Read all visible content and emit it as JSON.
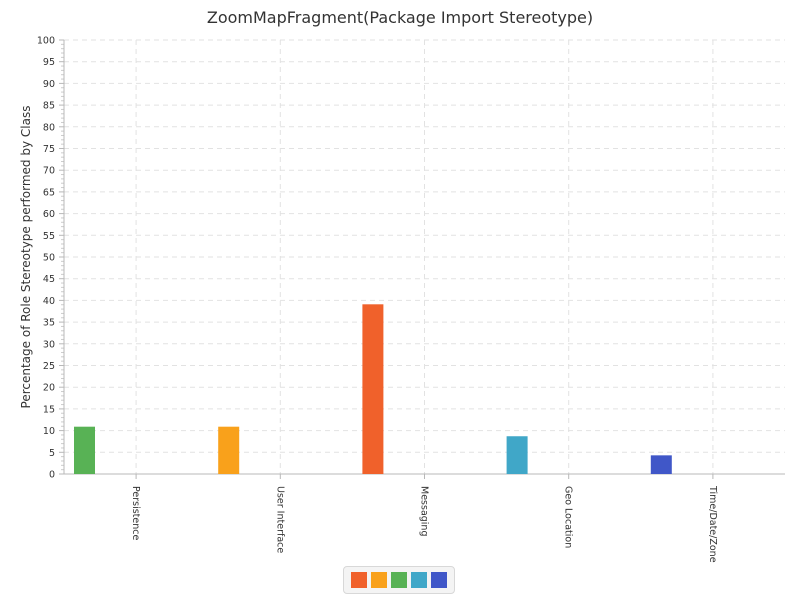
{
  "chart_data": {
    "type": "bar",
    "title": "ZoomMapFragment(Package Import Stereotype)",
    "xlabel": "",
    "ylabel": "Percentage of Role Stereotype performed by Class",
    "ylim": [
      0,
      100
    ],
    "ytick_step": 5,
    "grid": true,
    "legend_position": "bottom-center",
    "categories": [
      "Persistence",
      "User Interface",
      "Messaging",
      "Geo Location",
      "Time/Date/Zone"
    ],
    "series": [
      {
        "color": "#f0612b",
        "values": [
          0,
          0,
          39.1,
          0,
          0
        ]
      },
      {
        "color": "#f9a11b",
        "values": [
          0,
          10.9,
          0,
          0,
          0
        ]
      },
      {
        "color": "#58b255",
        "values": [
          10.9,
          0,
          0,
          0,
          0
        ]
      },
      {
        "color": "#40a7c8",
        "values": [
          0,
          0,
          0,
          8.7,
          0
        ]
      },
      {
        "color": "#4057c8",
        "values": [
          0,
          0,
          0,
          0,
          4.3
        ]
      }
    ]
  }
}
